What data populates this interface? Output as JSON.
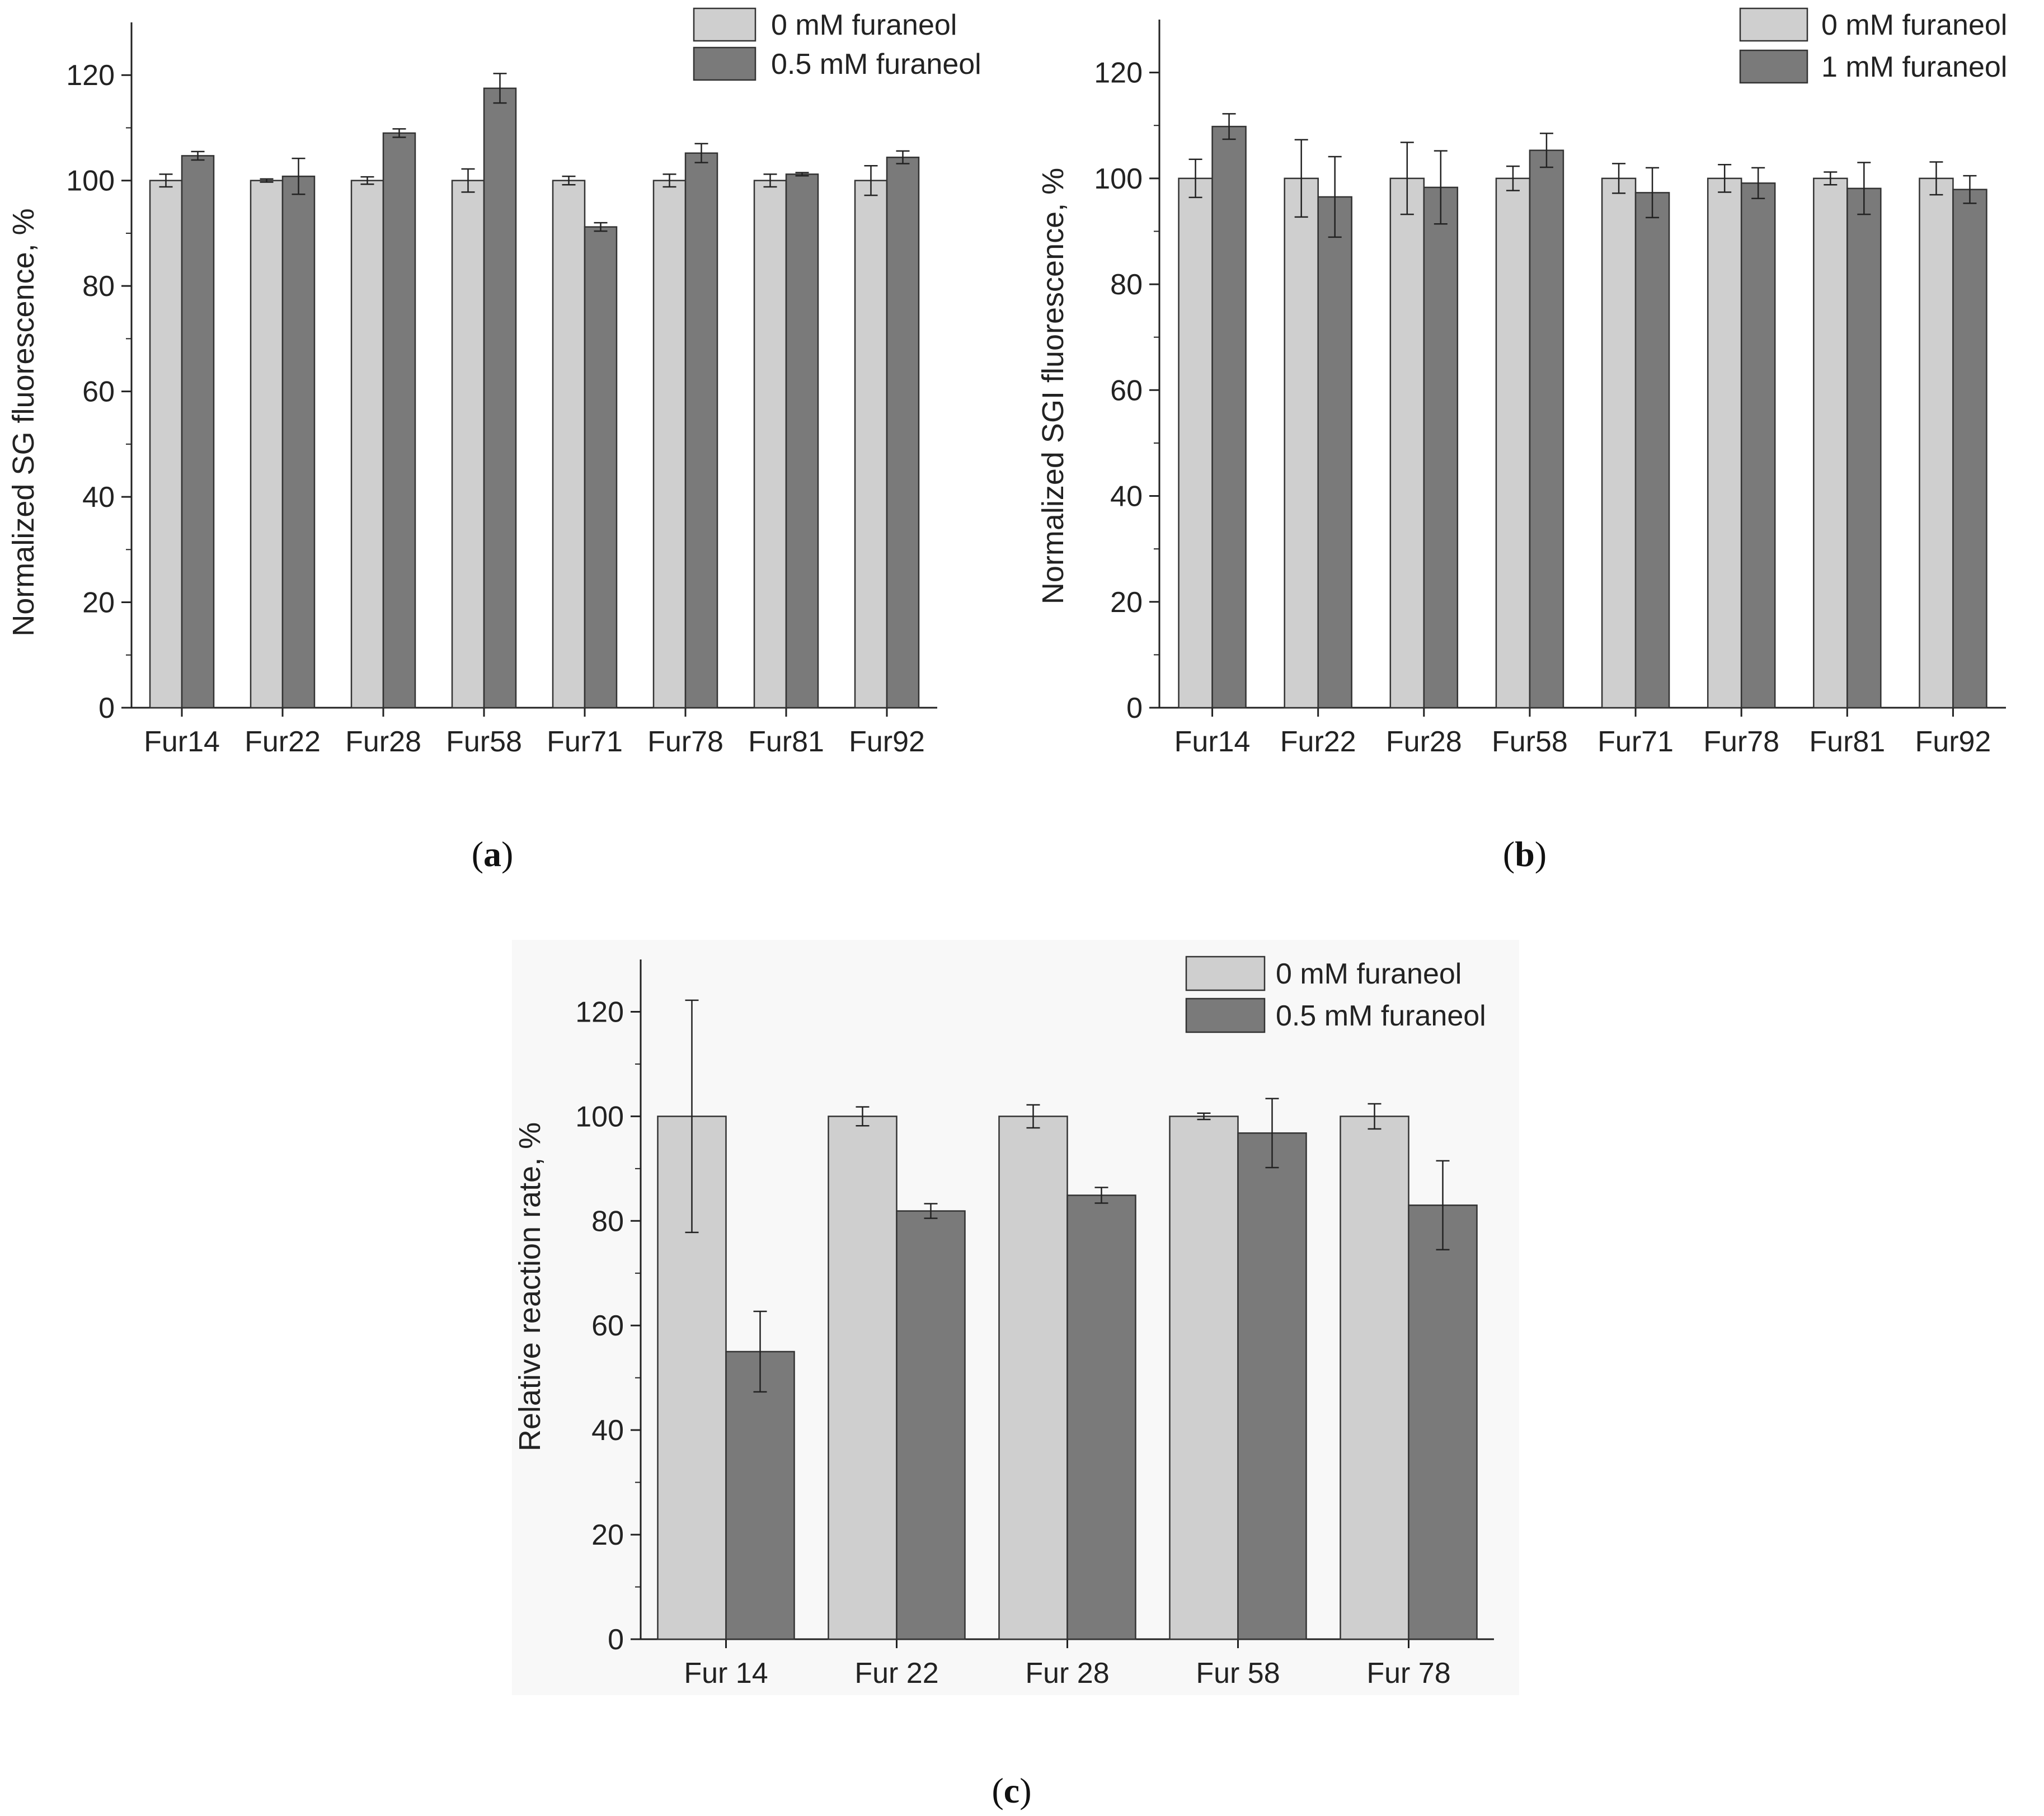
{
  "colors": {
    "light": "#cfcfcf",
    "dark": "#7a7a7a",
    "axis": "#222222",
    "panel_c_bg": "#f8f8f8"
  },
  "chart_data": [
    {
      "type": "bar",
      "panel": "a",
      "panel_label": {
        "open": "(",
        "letter": "a",
        "close": ")"
      },
      "ylabel": "Normalized SG fluorescence, %",
      "ylim": [
        0,
        130
      ],
      "yticks": [
        0,
        20,
        40,
        60,
        80,
        100,
        120
      ],
      "categories": [
        "Fur14",
        "Fur22",
        "Fur28",
        "Fur58",
        "Fur71",
        "Fur78",
        "Fur81",
        "Fur92"
      ],
      "series": [
        {
          "name": "0 mM furaneol",
          "color": "light",
          "values": [
            100,
            100,
            100,
            100,
            100,
            100,
            100,
            100
          ],
          "errors": [
            1.2,
            0.3,
            0.7,
            2.2,
            0.8,
            1.2,
            1.2,
            2.8
          ]
        },
        {
          "name": "0.5 mM furaneol",
          "color": "dark",
          "values": [
            104.7,
            100.8,
            109,
            117.5,
            91.2,
            105.2,
            101.2,
            104.4
          ],
          "errors": [
            0.8,
            3.4,
            0.8,
            2.8,
            0.8,
            1.8,
            0.3,
            1.2
          ]
        }
      ]
    },
    {
      "type": "bar",
      "panel": "b",
      "panel_label": {
        "open": "(",
        "letter": "b",
        "close": ")"
      },
      "ylabel": "Normalized SGI fluorescence, %",
      "ylim": [
        0,
        130
      ],
      "yticks": [
        0,
        20,
        40,
        60,
        80,
        100,
        120
      ],
      "categories": [
        "Fur14",
        "Fur22",
        "Fur28",
        "Fur58",
        "Fur71",
        "Fur78",
        "Fur81",
        "Fur92"
      ],
      "series": [
        {
          "name": "0 mM furaneol",
          "color": "light",
          "values": [
            100,
            100,
            100,
            100,
            100,
            100,
            100,
            100
          ],
          "errors": [
            3.6,
            7.3,
            6.8,
            2.3,
            2.8,
            2.6,
            1.2,
            3.1
          ]
        },
        {
          "name": "1 mM furaneol",
          "color": "dark",
          "values": [
            109.8,
            96.5,
            98.3,
            105.3,
            97.3,
            99.1,
            98.1,
            97.9
          ],
          "errors": [
            2.4,
            7.6,
            6.9,
            3.2,
            4.7,
            2.9,
            4.9,
            2.6
          ]
        }
      ]
    },
    {
      "type": "bar",
      "panel": "c",
      "panel_label": {
        "open": "(",
        "letter": "c",
        "close": ")"
      },
      "ylabel": "Relative reaction rate, %",
      "ylim": [
        0,
        130
      ],
      "yticks": [
        0,
        20,
        40,
        60,
        80,
        100,
        120
      ],
      "categories": [
        "Fur 14",
        "Fur 22",
        "Fur 28",
        "Fur 58",
        "Fur 78"
      ],
      "series": [
        {
          "name": "0 mM furaneol",
          "color": "light",
          "values": [
            100,
            100,
            100,
            100,
            100
          ],
          "errors": [
            22.2,
            1.8,
            2.2,
            0.6,
            2.4
          ]
        },
        {
          "name": "0.5 mM furaneol",
          "color": "dark",
          "values": [
            55,
            81.9,
            84.9,
            96.8,
            83
          ],
          "errors": [
            7.7,
            1.4,
            1.5,
            6.6,
            8.5
          ]
        }
      ]
    }
  ]
}
